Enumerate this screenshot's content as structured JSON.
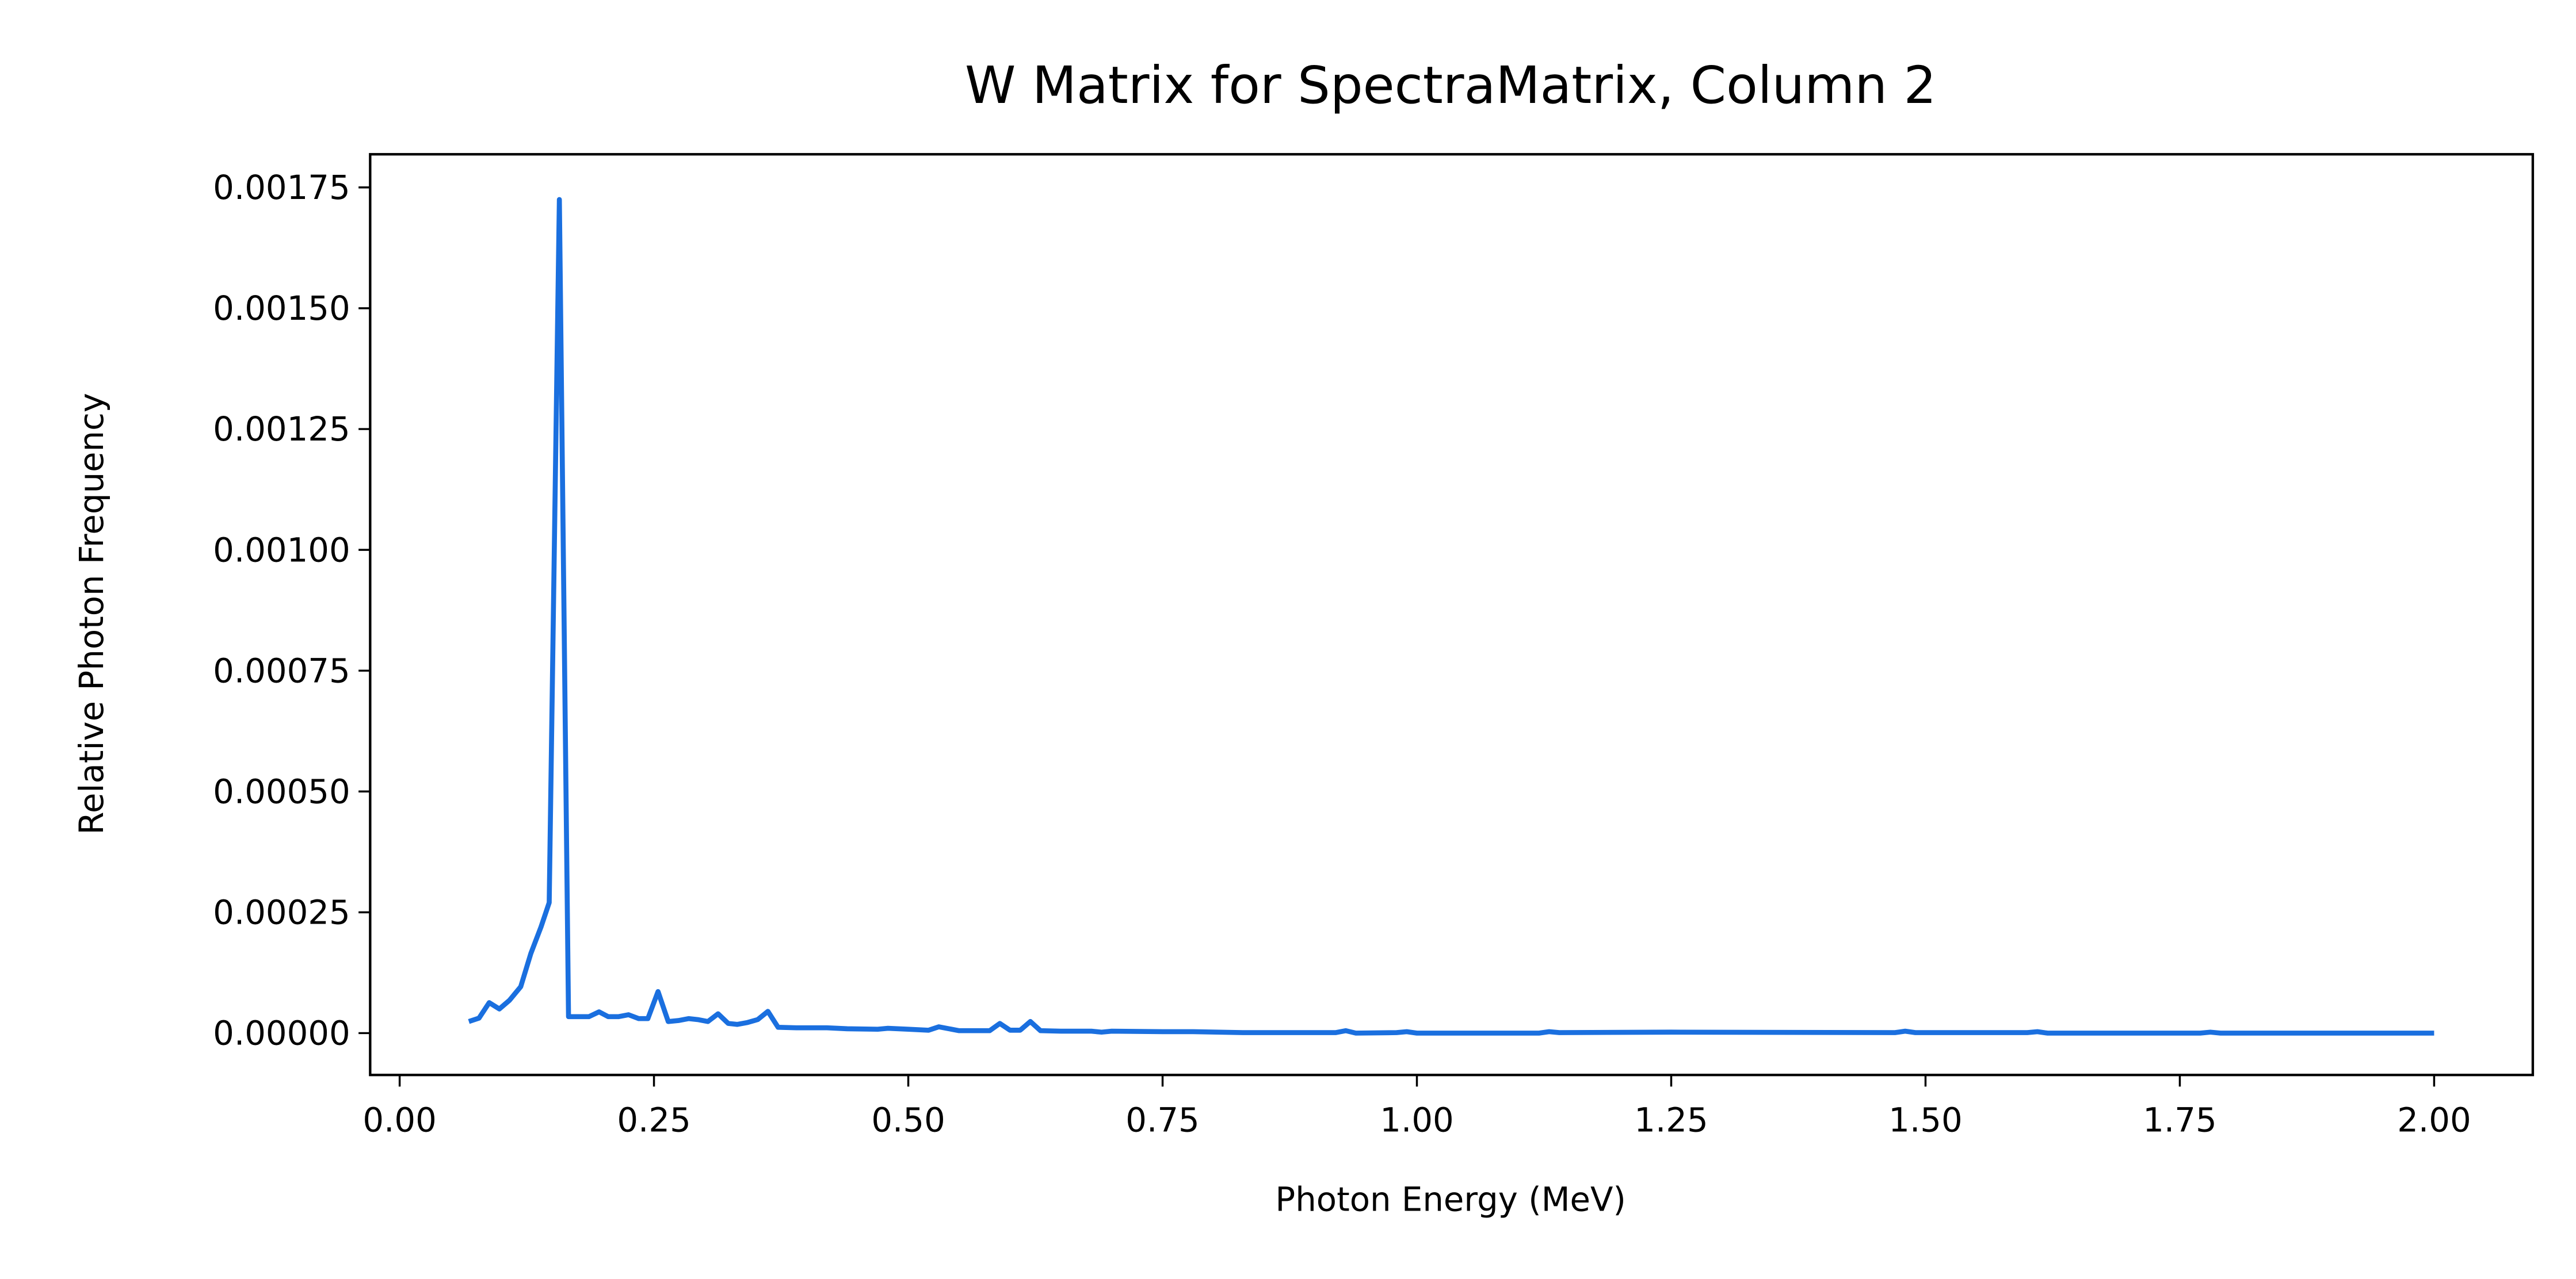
{
  "chart_data": {
    "type": "line",
    "title": "W Matrix for SpectraMatrix, Column 2",
    "xlabel": "Photon Energy (MeV)",
    "ylabel": "Relative Photon Frequency",
    "x": [
      0.068,
      0.078,
      0.088,
      0.098,
      0.108,
      0.119,
      0.129,
      0.139,
      0.147,
      0.157,
      0.166,
      0.176,
      0.186,
      0.196,
      0.205,
      0.215,
      0.225,
      0.235,
      0.244,
      0.254,
      0.264,
      0.274,
      0.284,
      0.293,
      0.303,
      0.313,
      0.323,
      0.332,
      0.342,
      0.352,
      0.362,
      0.372,
      0.39,
      0.42,
      0.44,
      0.47,
      0.48,
      0.5,
      0.52,
      0.53,
      0.55,
      0.58,
      0.59,
      0.6,
      0.61,
      0.62,
      0.63,
      0.65,
      0.68,
      0.69,
      0.7,
      0.75,
      0.78,
      0.83,
      0.92,
      0.93,
      0.94,
      0.98,
      0.99,
      1.0,
      1.12,
      1.13,
      1.14,
      1.25,
      1.47,
      1.48,
      1.49,
      1.6,
      1.61,
      1.62,
      1.77,
      1.78,
      1.79,
      2.0
    ],
    "series": [
      {
        "color": "#1a6fdf",
        "values": [
          2.4e-05,
          3.1e-05,
          6.3e-05,
          5e-05,
          6.8e-05,
          9.6e-05,
          0.000165,
          0.00022,
          0.00027,
          0.001725,
          3.4e-05,
          3.4e-05,
          3.4e-05,
          4.4e-05,
          3.4e-05,
          3.4e-05,
          3.8e-05,
          3e-05,
          3e-05,
          8.6e-05,
          2.4e-05,
          2.6e-05,
          3e-05,
          2.8e-05,
          2.4e-05,
          4e-05,
          2e-05,
          1.8e-05,
          2.2e-05,
          2.8e-05,
          4.5e-05,
          1.2e-05,
          1.1e-05,
          1.1e-05,
          9e-06,
          8e-06,
          1e-05,
          8e-06,
          6e-06,
          1.3e-05,
          5e-06,
          5e-06,
          2e-05,
          6e-06,
          6e-06,
          2.4e-05,
          5e-06,
          4e-06,
          4e-06,
          2e-06,
          4e-06,
          3e-06,
          3e-06,
          1e-06,
          1e-06,
          5e-06,
          0,
          1e-06,
          3e-06,
          0,
          0,
          3e-06,
          1e-06,
          2e-06,
          1e-06,
          4e-06,
          1e-06,
          1e-06,
          3e-06,
          0,
          0,
          2e-06,
          0,
          0
        ]
      }
    ],
    "xlim": [
      -0.029,
      2.097
    ],
    "ylim": [
      -8.66e-05,
      0.0018186
    ],
    "xticks": [
      {
        "value": 0,
        "label": "0.00"
      },
      {
        "value": 0.25,
        "label": "0.25"
      },
      {
        "value": 0.5,
        "label": "0.50"
      },
      {
        "value": 0.75,
        "label": "0.75"
      },
      {
        "value": 1,
        "label": "1.00"
      },
      {
        "value": 1.25,
        "label": "1.25"
      },
      {
        "value": 1.5,
        "label": "1.50"
      },
      {
        "value": 1.75,
        "label": "1.75"
      },
      {
        "value": 2,
        "label": "2.00"
      }
    ],
    "yticks": [
      {
        "value": 0,
        "label": "0.00000"
      },
      {
        "value": 0.00025,
        "label": "0.00025"
      },
      {
        "value": 0.0005,
        "label": "0.00050"
      },
      {
        "value": 0.00075,
        "label": "0.00075"
      },
      {
        "value": 0.001,
        "label": "0.00100"
      },
      {
        "value": 0.00125,
        "label": "0.00125"
      },
      {
        "value": 0.0015,
        "label": "0.00150"
      },
      {
        "value": 0.00175,
        "label": "0.00175"
      }
    ]
  }
}
